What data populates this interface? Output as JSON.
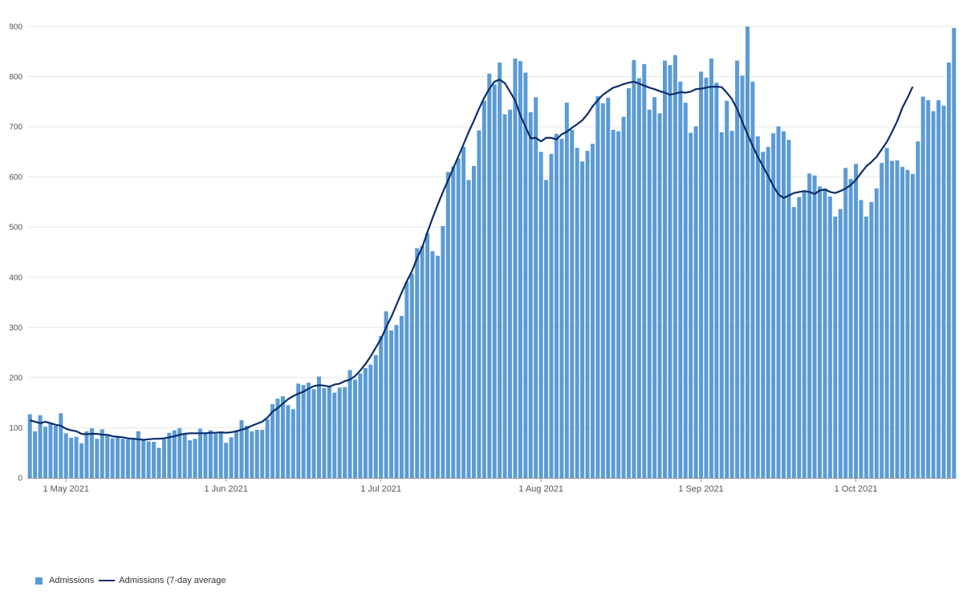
{
  "colors": {
    "bar": "#5b9bd5",
    "line": "#0b2d6b",
    "grid": "#e8e8e8",
    "axis": "#999999"
  },
  "chart_data": {
    "type": "bar",
    "title": "",
    "xlabel": "",
    "ylabel": "",
    "ylim": [
      0,
      900
    ],
    "yticks": [
      "0",
      "100",
      "200",
      "300",
      "400",
      "500",
      "600",
      "700",
      "800",
      "900"
    ],
    "x_tick_labels": [
      {
        "label": "1 May 2021",
        "index": 7
      },
      {
        "label": "1 Jun 2021",
        "index": 38
      },
      {
        "label": "1 Jul 2021",
        "index": 68
      },
      {
        "label": "1 Aug 2021",
        "index": 99
      },
      {
        "label": "1 Sep 2021",
        "index": 130
      },
      {
        "label": "1 Oct 2021",
        "index": 160
      }
    ],
    "x_start": "2021-04-24",
    "x_end": "2021-10-18",
    "grid": true,
    "legend": "bottom-left",
    "series": [
      {
        "name": "Admissions",
        "kind": "bar",
        "values": [
          127,
          93,
          125,
          102,
          109,
          104,
          129,
          89,
          80,
          82,
          69,
          93,
          99,
          78,
          97,
          87,
          79,
          82,
          78,
          77,
          80,
          93,
          77,
          73,
          72,
          60,
          77,
          90,
          95,
          99,
          88,
          75,
          78,
          98,
          91,
          95,
          88,
          92,
          70,
          81,
          95,
          115,
          104,
          93,
          96,
          96,
          117,
          147,
          158,
          163,
          145,
          137,
          188,
          185,
          190,
          177,
          202,
          179,
          181,
          170,
          180,
          181,
          215,
          196,
          208,
          219,
          226,
          245,
          283,
          332,
          294,
          305,
          323,
          391,
          407,
          458,
          462,
          488,
          452,
          443,
          502,
          610,
          621,
          637,
          660,
          594,
          622,
          693,
          752,
          806,
          784,
          828,
          725,
          734,
          836,
          831,
          808,
          729,
          759,
          650,
          594,
          646,
          686,
          676,
          748,
          694,
          658,
          631,
          652,
          666,
          761,
          747,
          758,
          694,
          691,
          720,
          777,
          833,
          797,
          825,
          734,
          759,
          727,
          832,
          823,
          843,
          790,
          748,
          688,
          701,
          810,
          798,
          836,
          788,
          689,
          752,
          692,
          832,
          802,
          900,
          790,
          681,
          650,
          660,
          687,
          701,
          691,
          674,
          540,
          560,
          571,
          607,
          603,
          581,
          577,
          561,
          521,
          536,
          618,
          596,
          626,
          554,
          521,
          550,
          577,
          628,
          658,
          632,
          633,
          620,
          614,
          606,
          671,
          760,
          753,
          731,
          753,
          742,
          828,
          897
        ]
      },
      {
        "name": "Admissions (7-day average",
        "kind": "line",
        "values": [
          115,
          112,
          109,
          112,
          109,
          106,
          104,
          98,
          95,
          93,
          88,
          87,
          88,
          88,
          86,
          86,
          83,
          82,
          81,
          79,
          78,
          77,
          76,
          77,
          78,
          78,
          79,
          81,
          83,
          86,
          88,
          89,
          89,
          89,
          89,
          90,
          90,
          91,
          90,
          91,
          93,
          96,
          99,
          104,
          108,
          112,
          120,
          132,
          139,
          148,
          157,
          163,
          168,
          172,
          178,
          183,
          185,
          184,
          182,
          186,
          188,
          193,
          196,
          203,
          214,
          227,
          242,
          260,
          277,
          300,
          321,
          345,
          369,
          392,
          412,
          438,
          460,
          490,
          518,
          545,
          570,
          593,
          617,
          641,
          665,
          690,
          712,
          736,
          758,
          776,
          790,
          794,
          787,
          770,
          752,
          723,
          700,
          677,
          678,
          671,
          678,
          678,
          675,
          685,
          690,
          698,
          705,
          713,
          725,
          741,
          753,
          764,
          771,
          778,
          781,
          785,
          788,
          790,
          786,
          782,
          778,
          775,
          771,
          768,
          764,
          766,
          769,
          768,
          770,
          775,
          776,
          778,
          780,
          780,
          779,
          768,
          755,
          735,
          710,
          685,
          662,
          640,
          621,
          602,
          582,
          565,
          558,
          563,
          568,
          570,
          572,
          570,
          566,
          573,
          575,
          570,
          568,
          572,
          577,
          584,
          594,
          608,
          621,
          630,
          640,
          655,
          670,
          690,
          711,
          738,
          758,
          780
        ]
      }
    ]
  },
  "legend": {
    "bar_label": "Admissions",
    "line_label": "Admissions (7-day average"
  }
}
